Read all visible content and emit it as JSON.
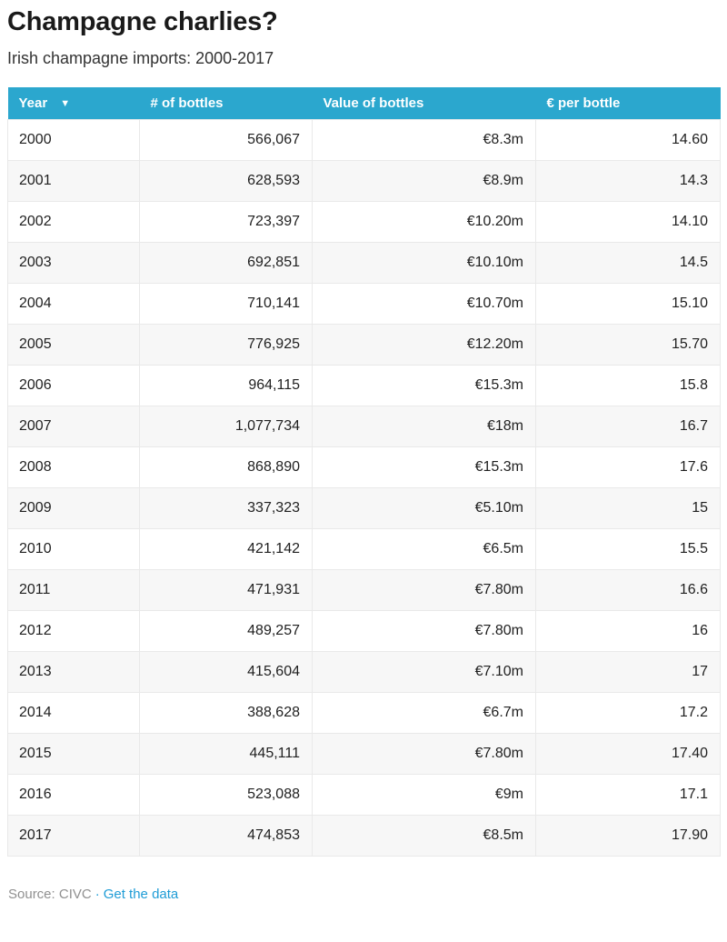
{
  "header": {
    "title": "Champagne charlies?",
    "subtitle": "Irish champagne imports: 2000-2017"
  },
  "table": {
    "columns": [
      {
        "label": "Year",
        "sort_icon": "▼",
        "align": "left"
      },
      {
        "label": "# of bottles",
        "align": "left"
      },
      {
        "label": "Value of bottles",
        "align": "left"
      },
      {
        "label": "€ per bottle",
        "align": "left"
      }
    ],
    "rows": [
      {
        "year": "2000",
        "bottles": "566,067",
        "value": "€8.3m",
        "per_bottle": "14.60"
      },
      {
        "year": "2001",
        "bottles": "628,593",
        "value": "€8.9m",
        "per_bottle": "14.3"
      },
      {
        "year": "2002",
        "bottles": "723,397",
        "value": "€10.20m",
        "per_bottle": "14.10"
      },
      {
        "year": "2003",
        "bottles": "692,851",
        "value": "€10.10m",
        "per_bottle": "14.5"
      },
      {
        "year": "2004",
        "bottles": "710,141",
        "value": "€10.70m",
        "per_bottle": "15.10"
      },
      {
        "year": "2005",
        "bottles": "776,925",
        "value": "€12.20m",
        "per_bottle": "15.70"
      },
      {
        "year": "2006",
        "bottles": "964,115",
        "value": "€15.3m",
        "per_bottle": "15.8"
      },
      {
        "year": "2007",
        "bottles": "1,077,734",
        "value": "€18m",
        "per_bottle": "16.7"
      },
      {
        "year": "2008",
        "bottles": "868,890",
        "value": "€15.3m",
        "per_bottle": "17.6"
      },
      {
        "year": "2009",
        "bottles": "337,323",
        "value": "€5.10m",
        "per_bottle": "15"
      },
      {
        "year": "2010",
        "bottles": "421,142",
        "value": "€6.5m",
        "per_bottle": "15.5"
      },
      {
        "year": "2011",
        "bottles": "471,931",
        "value": "€7.80m",
        "per_bottle": "16.6"
      },
      {
        "year": "2012",
        "bottles": "489,257",
        "value": "€7.80m",
        "per_bottle": "16"
      },
      {
        "year": "2013",
        "bottles": "415,604",
        "value": "€7.10m",
        "per_bottle": "17"
      },
      {
        "year": "2014",
        "bottles": "388,628",
        "value": "€6.7m",
        "per_bottle": "17.2"
      },
      {
        "year": "2015",
        "bottles": "445,111",
        "value": "€7.80m",
        "per_bottle": "17.40"
      },
      {
        "year": "2016",
        "bottles": "523,088",
        "value": "€9m",
        "per_bottle": "17.1"
      },
      {
        "year": "2017",
        "bottles": "474,853",
        "value": "€8.5m",
        "per_bottle": "17.90"
      }
    ]
  },
  "footer": {
    "source_text": "Source: CIVC",
    "separator": "·",
    "link_label": "Get the data"
  },
  "colors": {
    "header_bg": "#2BA7CE",
    "link": "#1E9CD6",
    "stripe": "#F7F7F7",
    "border": "#E9E9E9",
    "source_gray": "#909090",
    "title_text": "#1A1A1A"
  },
  "icons": {
    "sort_descending": "▼"
  },
  "chart_data": {
    "type": "table",
    "title": "Champagne charlies?",
    "subtitle": "Irish champagne imports: 2000-2017",
    "columns": [
      "Year",
      "# of bottles",
      "Value of bottles (€m)",
      "€ per bottle"
    ],
    "sorted_by": {
      "column": "Year",
      "indicator": "▼"
    },
    "rows": [
      [
        2000,
        566067,
        8.3,
        14.6
      ],
      [
        2001,
        628593,
        8.9,
        14.3
      ],
      [
        2002,
        723397,
        10.2,
        14.1
      ],
      [
        2003,
        692851,
        10.1,
        14.5
      ],
      [
        2004,
        710141,
        10.7,
        15.1
      ],
      [
        2005,
        776925,
        12.2,
        15.7
      ],
      [
        2006,
        964115,
        15.3,
        15.8
      ],
      [
        2007,
        1077734,
        18,
        16.7
      ],
      [
        2008,
        868890,
        15.3,
        17.6
      ],
      [
        2009,
        337323,
        5.1,
        15
      ],
      [
        2010,
        421142,
        6.5,
        15.5
      ],
      [
        2011,
        471931,
        7.8,
        16.6
      ],
      [
        2012,
        489257,
        7.8,
        16
      ],
      [
        2013,
        415604,
        7.1,
        17
      ],
      [
        2014,
        388628,
        6.7,
        17.2
      ],
      [
        2015,
        445111,
        7.8,
        17.4
      ],
      [
        2016,
        523088,
        9,
        17.1
      ],
      [
        2017,
        474853,
        8.5,
        17.9
      ]
    ],
    "source": "CIVC"
  }
}
